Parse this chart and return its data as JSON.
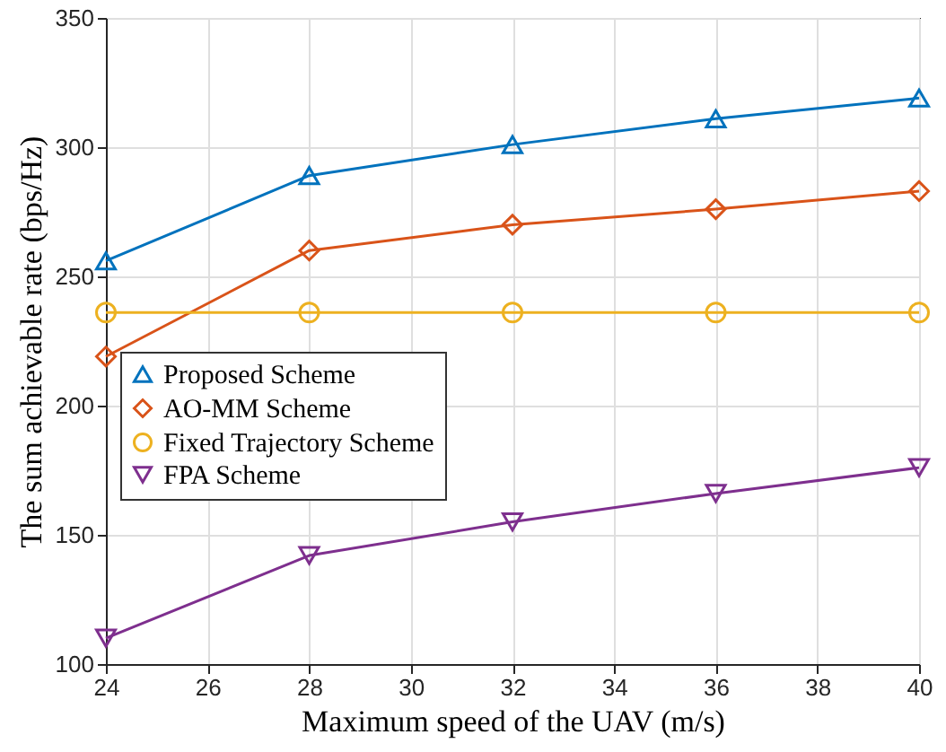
{
  "chart_data": {
    "type": "line",
    "xlabel": "Maximum speed of the UAV (m/s)",
    "ylabel": "The sum achievable rate (bps/Hz)",
    "x": [
      24,
      28,
      32,
      36,
      40
    ],
    "series": [
      {
        "name": "Proposed Scheme",
        "color": "#0072bd",
        "marker": "triangle",
        "values": [
          256,
          289,
          301,
          311,
          319
        ]
      },
      {
        "name": "AO-MM Scheme",
        "color": "#d95319",
        "marker": "diamond",
        "values": [
          219,
          260,
          270,
          276,
          283
        ]
      },
      {
        "name": "Fixed Trajectory Scheme",
        "color": "#edb120",
        "marker": "circle",
        "values": [
          236,
          236,
          236,
          236,
          236
        ]
      },
      {
        "name": "FPA Scheme",
        "color": "#7e2f8e",
        "marker": "triangle-down",
        "values": [
          110,
          142,
          155,
          166,
          176
        ]
      }
    ],
    "xlim": [
      24,
      40
    ],
    "xticks": [
      24,
      26,
      28,
      30,
      32,
      34,
      36,
      38,
      40
    ],
    "ylim": [
      100,
      350
    ],
    "yticks": [
      100,
      150,
      200,
      250,
      300,
      350
    ],
    "grid": true,
    "legend": "left",
    "line_style": "solid"
  }
}
